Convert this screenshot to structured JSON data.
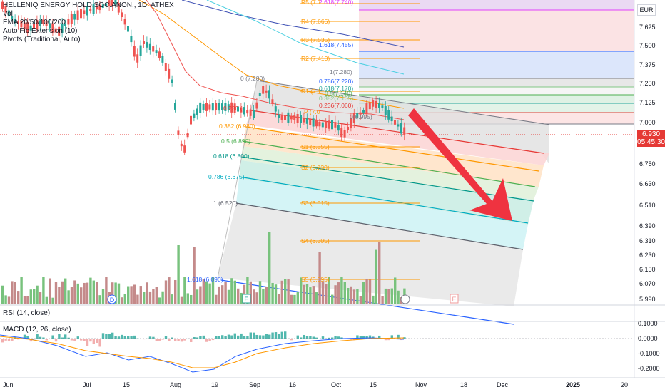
{
  "legend": {
    "symbol": "HELLENIQ ENERGY HOLD.SOC.ANON., 1D, ATHEX",
    "vol": "Vol",
    "ema": "EMA 20/50/100/200",
    "fib_ext": "Auto Fib Extension (10)",
    "pivots": "Pivots (Traditional, Auto)",
    "rsi": "RSI (14, close)",
    "macd": "MACD (12, 26, close)"
  },
  "currency": "EUR",
  "last_price": "6.930",
  "countdown": "05:45:30",
  "colors": {
    "up": "#26a69a",
    "down": "#ef5350",
    "vol_up": "#78c27d",
    "vol_down": "#c48a8a",
    "ema20": "#ef5350",
    "ema50": "#ff9800",
    "ema100": "#4dd0e1",
    "ema200": "#3f51b5",
    "arrow": "#ef3340",
    "pivot": "#ff9800",
    "fib_blue": "#2962ff"
  },
  "price_axis": [
    "7.625",
    "7.500",
    "7.375",
    "7.250",
    "7.125",
    "7.000",
    "6.750",
    "6.630",
    "6.510",
    "6.390",
    "6.310",
    "6.230",
    "6.150",
    "6.070",
    "5.990"
  ],
  "macd_axis": [
    "0.1000",
    "0.0000",
    "-0.1000",
    "-0.2000"
  ],
  "time_axis": [
    "Jun",
    "Jul",
    "15",
    "Aug",
    "19",
    "Sep",
    "16",
    "Oct",
    "15",
    "Nov",
    "18",
    "Dec",
    "2025",
    "20"
  ],
  "pivot_labels": {
    "r5": "R5 (7.7",
    "r4": "R4 (7.665)",
    "r3": "R3 (7.535)",
    "r2": "R2 (7.410)",
    "r1": "R1 (7.1",
    "s1": "S1 (6.855)",
    "s2": "S2 (6.730)",
    "s3": "S3 (6.515)",
    "s4": "S4 (6.305)",
    "s5": "S5 (6.095)",
    "p": "P (7.0"
  },
  "fib_top_labels": {
    "l2618": "2.618(7.740)",
    "l1618": "1.618(7.455)",
    "l1": "1(7.280)",
    "l0786": "0.786(7.220)",
    "l0618": "0.618(7.170)",
    "l05": "0.5(7.140)",
    "l0382": "0.382(7.105)",
    "l0236": "0.236(7.060)",
    "l0": "0(6.995)"
  },
  "fib_channel_labels": {
    "l0": "0 (7.280)",
    "l0236": "0.236 (",
    "l0382": "0.382 (6.980)",
    "l05": "0.5 (6.890)",
    "l0618": "0.618 (6.800)",
    "l0786": "0.786 (6.675)",
    "l1": "1 (6.520)",
    "l1618": "1.618 (6.090)"
  },
  "event_markers": [
    "D",
    "E",
    "E"
  ]
}
